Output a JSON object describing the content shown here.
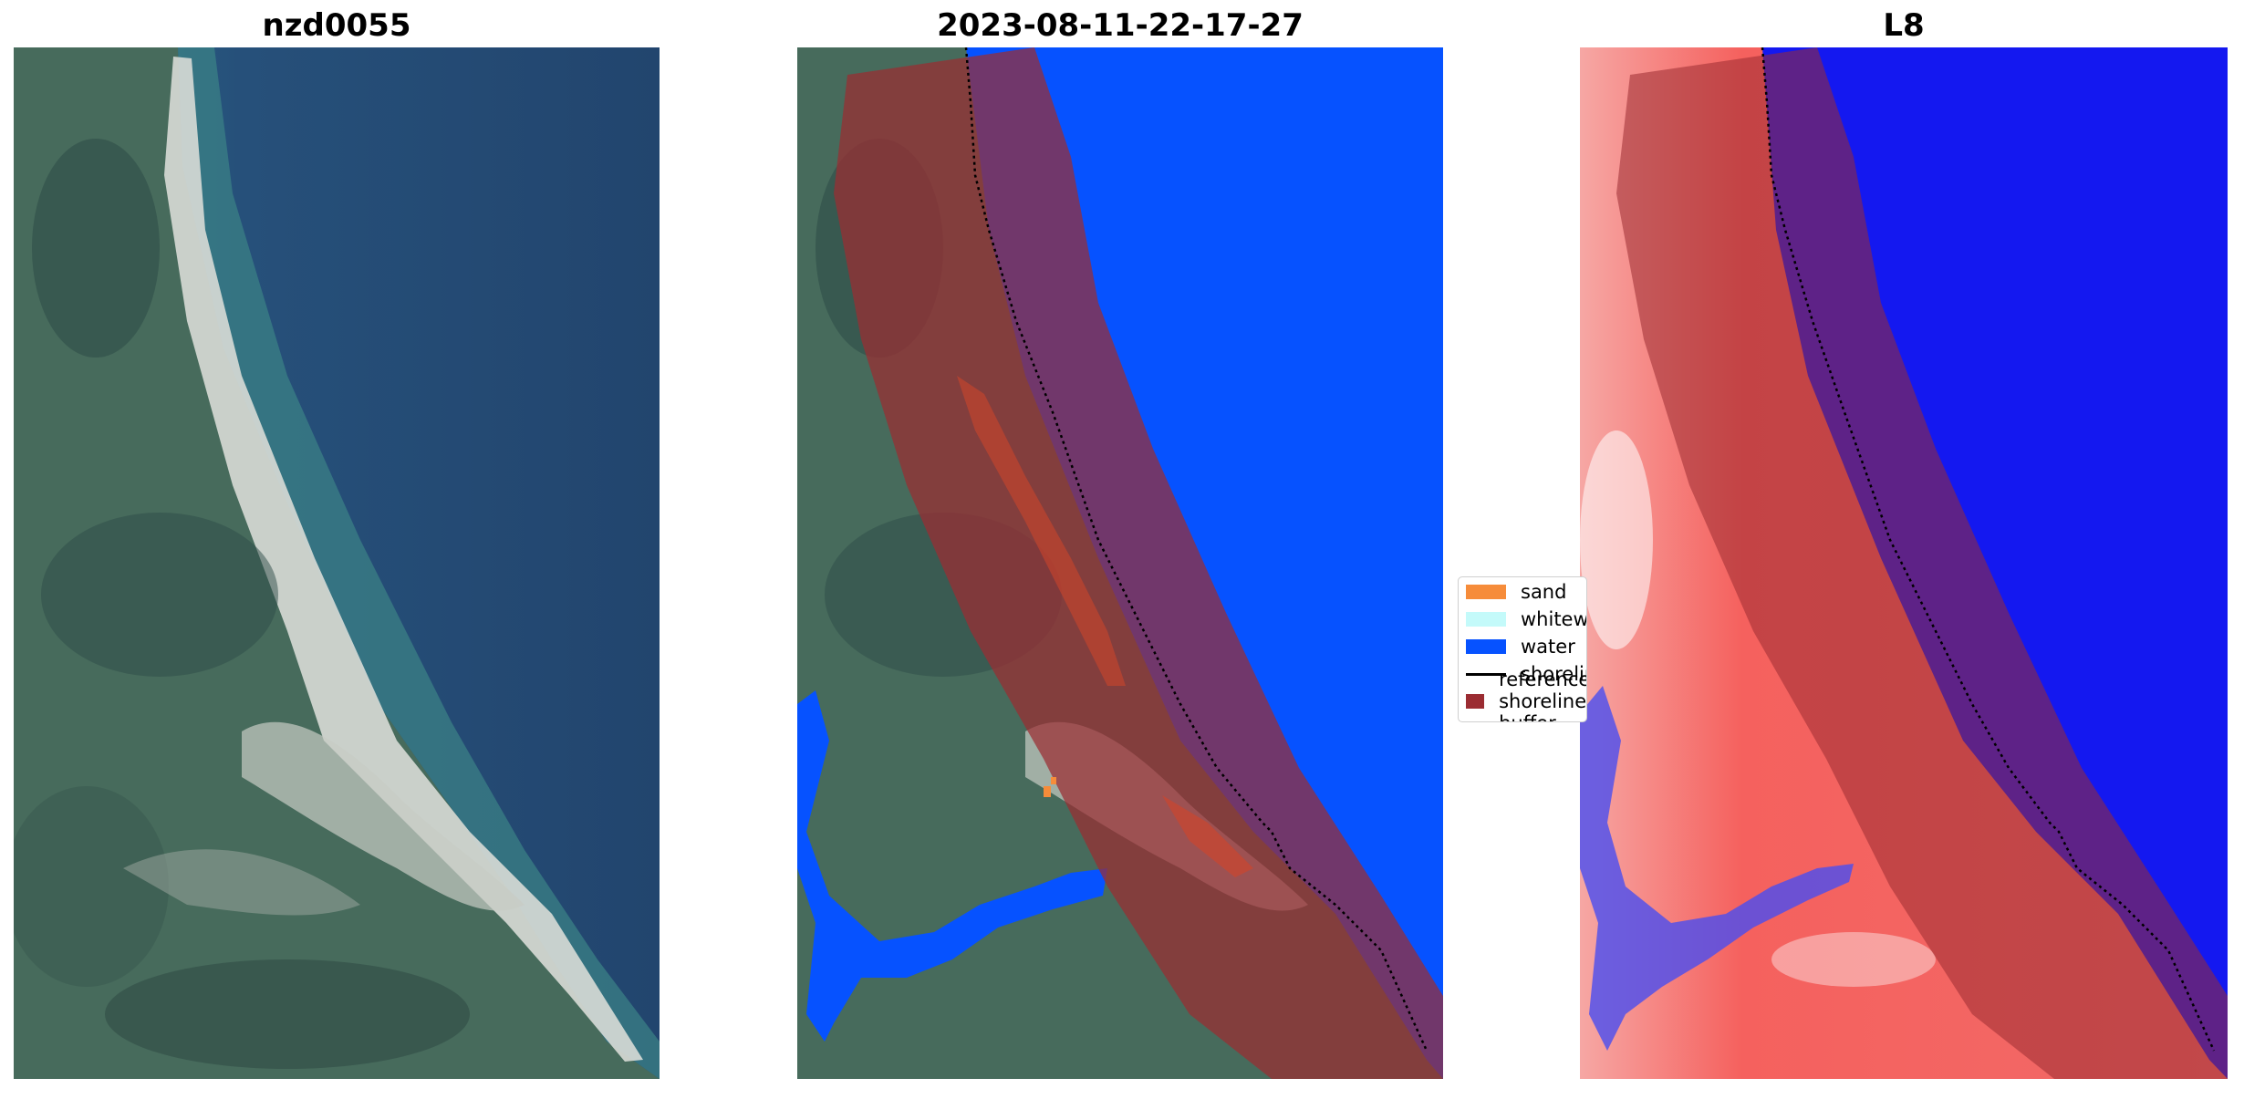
{
  "panels": [
    {
      "title": "nzd0055"
    },
    {
      "title": "2023-08-11-22-17-27"
    },
    {
      "title": "L8"
    }
  ],
  "legend": {
    "items": [
      {
        "label": "sand",
        "color": "#f68c3a"
      },
      {
        "label": "whitewater",
        "color": "#c4fafa"
      },
      {
        "label": "water",
        "color": "#0652ff"
      },
      {
        "label": "shoreline",
        "color": "#000000"
      },
      {
        "label": "reference shoreline buffer",
        "color": "#9b2c32"
      }
    ]
  },
  "colors": {
    "ocean": "#264d7a",
    "land": "#456a5c",
    "beach": "#d8dcd6",
    "classified_water": "#0652ff",
    "buffer": "#9b2c32",
    "index_land": "#f5615e",
    "index_water": "#1418f0"
  }
}
